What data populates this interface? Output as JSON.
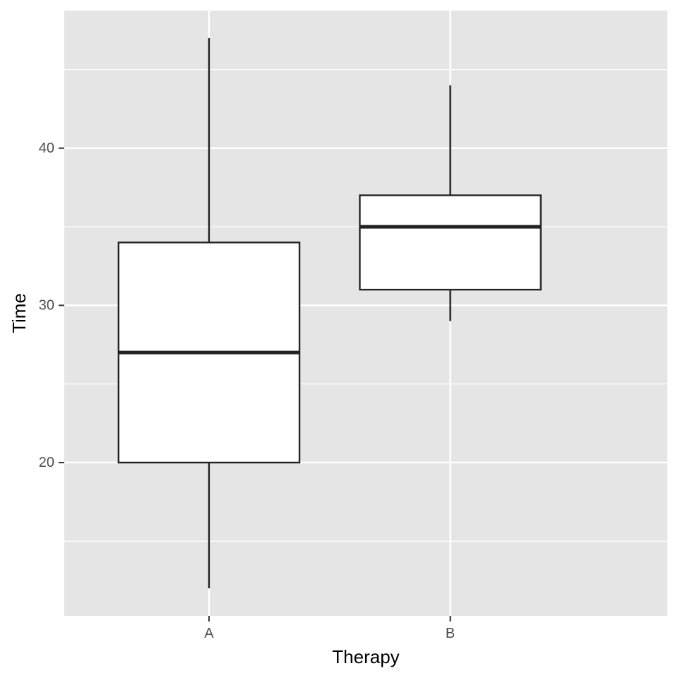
{
  "chart_data": {
    "type": "boxplot",
    "title": "",
    "xlabel": "Therapy",
    "ylabel": "Time",
    "categories": [
      "A",
      "B"
    ],
    "boxes": [
      {
        "category": "A",
        "whisker_low": 12,
        "q1": 20,
        "median": 27,
        "q3": 34,
        "whisker_high": 47
      },
      {
        "category": "B",
        "whisker_low": 29,
        "q1": 31,
        "median": 35,
        "q3": 37,
        "whisker_high": 44
      }
    ],
    "ylim": [
      10.25,
      48.75
    ],
    "y_ticks": [
      20,
      30,
      40
    ],
    "y_minor_ticks": [
      15,
      25,
      35,
      45
    ],
    "grid": true,
    "colors": {
      "panel_background": "#E5E5E5",
      "grid_line": "#FFFFFF",
      "box_fill": "#FFFFFF",
      "box_stroke": "#222222",
      "tick_text": "#4D4D4D",
      "axis_title_text": "#000000"
    }
  }
}
